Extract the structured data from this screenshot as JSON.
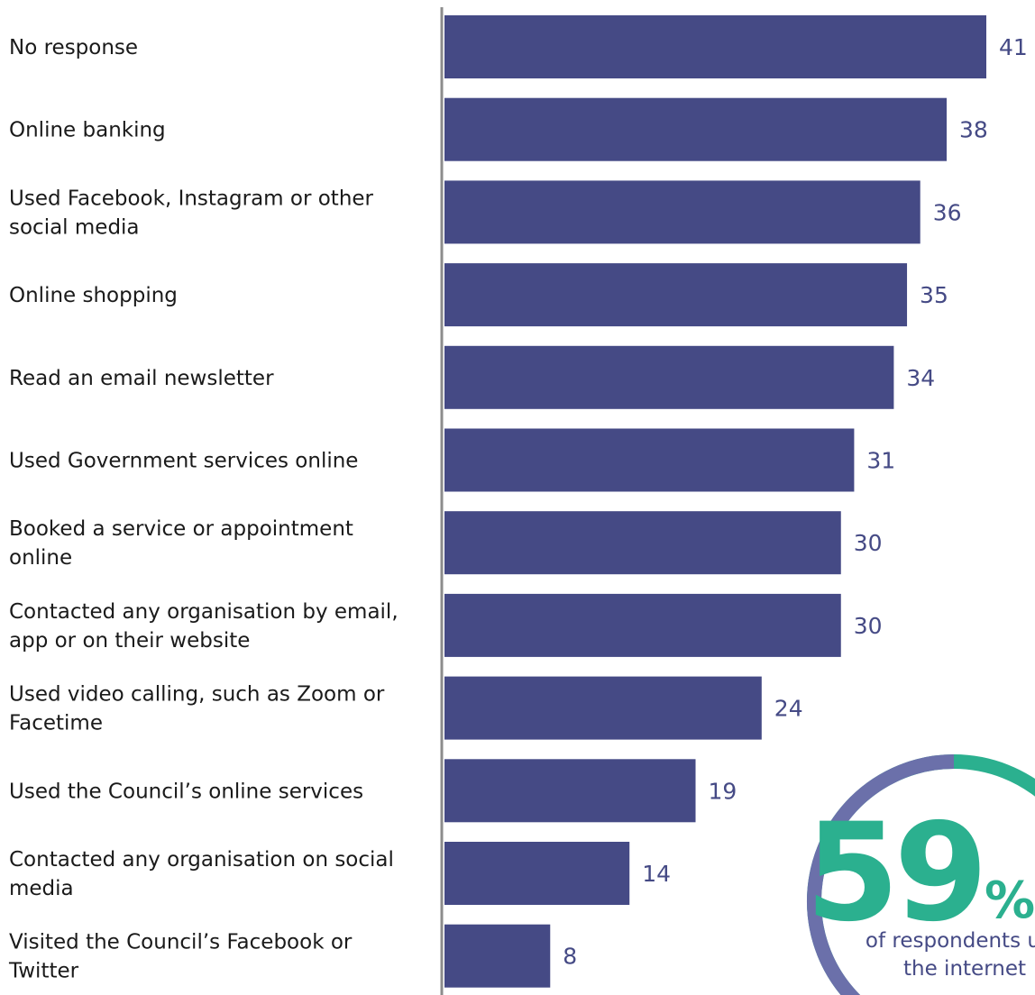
{
  "chart_data": {
    "type": "bar",
    "orientation": "horizontal",
    "categories": [
      [
        "No response"
      ],
      [
        "Online banking"
      ],
      [
        "Used Facebook, Instagram or other",
        "social media"
      ],
      [
        "Online shopping"
      ],
      [
        "Read an email newsletter"
      ],
      [
        "Used Government services online"
      ],
      [
        "Booked a service or appointment",
        "online"
      ],
      [
        "Contacted any organisation by email,",
        "app or on their website"
      ],
      [
        "Used video calling, such as Zoom or",
        "Facetime"
      ],
      [
        "Used the Council’s online services"
      ],
      [
        "Contacted any organisation on social",
        "media"
      ],
      [
        "Visited the Council’s Facebook or",
        "Twitter"
      ]
    ],
    "values": [
      41,
      38,
      36,
      35,
      34,
      31,
      30,
      30,
      24,
      19,
      14,
      8
    ],
    "value_labels": [
      "41",
      "38",
      "36",
      "35",
      "34",
      "31",
      "30",
      "30",
      "24",
      "19",
      "14",
      "8"
    ],
    "xlim": [
      0,
      41
    ],
    "grid": false,
    "bar_color": "#454a85",
    "value_label_color": "#454a85"
  },
  "callout": {
    "number": "59",
    "unit": "%",
    "caption_lines": [
      "of respondents use",
      "the internet"
    ],
    "fraction": 0.59,
    "ring_filled_color": "#6b70aa",
    "ring_remainder_color": "#2bb08f",
    "number_color": "#2bb08f"
  }
}
